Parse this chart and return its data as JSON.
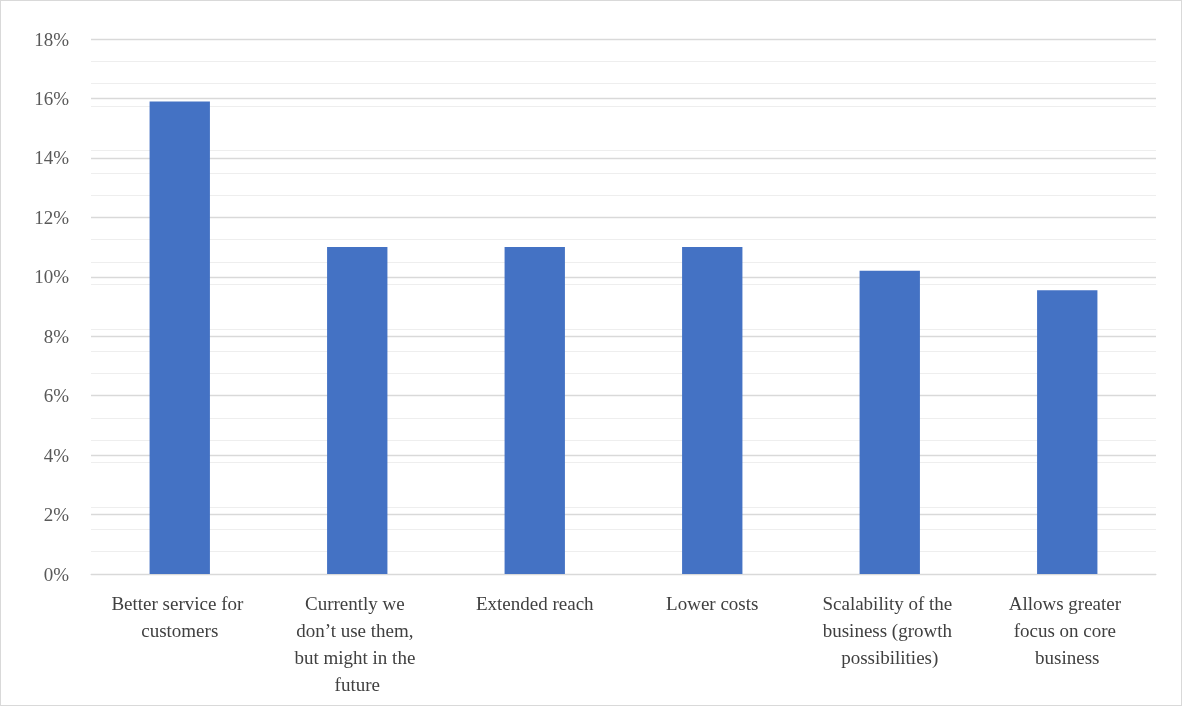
{
  "chart_data": {
    "type": "bar",
    "categories": [
      "Better service for customers",
      "Currently we don’t use them, but might in the future",
      "Extended reach",
      "Lower costs",
      "Scalability of the business (growth possibilities)",
      "Allows greater focus on core business"
    ],
    "values": [
      15.9,
      11.0,
      11.0,
      11.0,
      10.2,
      9.55
    ],
    "color": "#4472c4",
    "ylim": [
      0,
      18
    ],
    "yticks": [
      {
        "value": 0,
        "label": "0%"
      },
      {
        "value": 2,
        "label": "2%"
      },
      {
        "value": 4,
        "label": "4%"
      },
      {
        "value": 6,
        "label": "6%"
      },
      {
        "value": 8,
        "label": "8%"
      },
      {
        "value": 10,
        "label": "10%"
      },
      {
        "value": 12,
        "label": "12%"
      },
      {
        "value": 14,
        "label": "14%"
      },
      {
        "value": 16,
        "label": "16%"
      },
      {
        "value": 18,
        "label": "18%"
      }
    ],
    "grid": "y"
  }
}
